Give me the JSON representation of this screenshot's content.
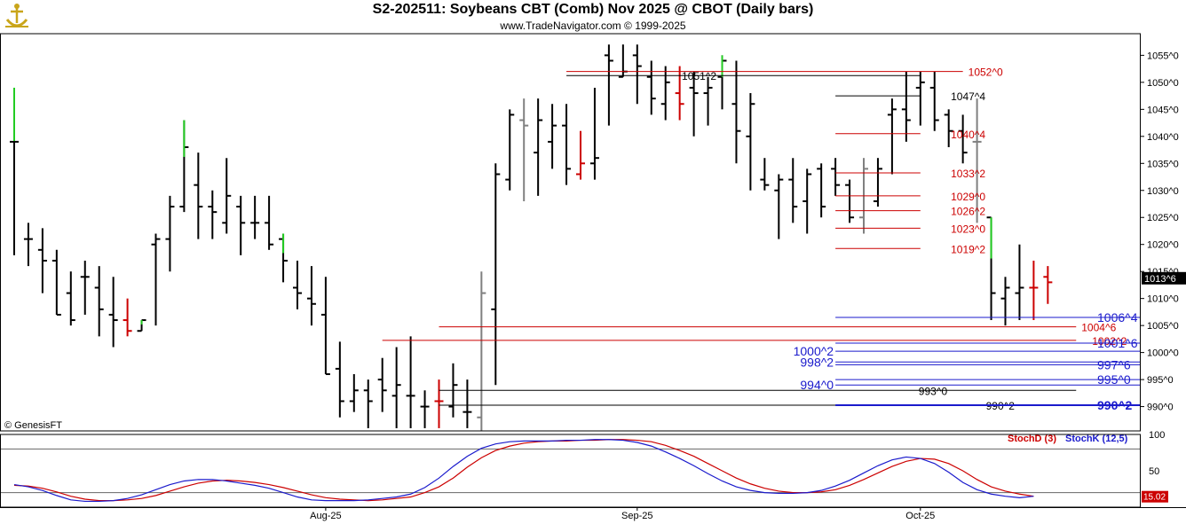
{
  "header": {
    "title": "S2-202511:  Soybeans CBT (Comb) Nov 2025 @ CBOT  (Daily bars)",
    "subtitle": "www.TradeNavigator.com © 1999-2025",
    "copyright": "© GenesisFT"
  },
  "colors": {
    "up": "#000000",
    "down": "#cc0000",
    "neutral": "#808080",
    "highlight": "#22cc22",
    "blue": "#1a1acc"
  },
  "chart_data": [
    {
      "type": "ohlc",
      "title": "",
      "xlabel": "",
      "ylabel": "",
      "ylim": [
        985.5,
        1059
      ],
      "y_ticks": [
        990,
        995,
        1000,
        1005,
        1010,
        1015,
        1020,
        1025,
        1030,
        1035,
        1040,
        1045,
        1050,
        1055
      ],
      "y_tick_labels": [
        "990^0",
        "995^0",
        "1000^0",
        "1005^0",
        "1010^0",
        "1015^0",
        "1020^0",
        "1025^0",
        "1030^0",
        "1035^0",
        "1040^0",
        "1045^0",
        "1050^0",
        "1055^0"
      ],
      "x_tick_labels": [
        {
          "label": "Aug-25",
          "bar": 22
        },
        {
          "label": "Sep-25",
          "bar": 44
        },
        {
          "label": "Oct-25",
          "bar": 64
        }
      ],
      "last_price_label": "1013^6",
      "last_price": 1013.75,
      "bars": [
        {
          "o": 1039,
          "h": 1049,
          "l": 1018,
          "c": 1039,
          "hl": "g"
        },
        {
          "o": 1021,
          "h": 1024,
          "l": 1016,
          "c": 1021
        },
        {
          "o": 1019,
          "h": 1023,
          "l": 1011,
          "c": 1017
        },
        {
          "o": 1017,
          "h": 1019,
          "l": 1007,
          "c": 1007
        },
        {
          "o": 1011,
          "h": 1015,
          "l": 1005,
          "c": 1006
        },
        {
          "o": 1014,
          "h": 1017,
          "l": 1007,
          "c": 1014
        },
        {
          "o": 1012,
          "h": 1016,
          "l": 1003,
          "c": 1008
        },
        {
          "o": 1007,
          "h": 1014,
          "l": 1001,
          "c": 1006
        },
        {
          "o": 1006,
          "h": 1010,
          "l": 1003,
          "c": 1004,
          "col": "r"
        },
        {
          "o": 1004,
          "h": 1006,
          "l": 1004,
          "c": 1006,
          "hl": "g"
        },
        {
          "o": 1020,
          "h": 1022,
          "l": 1005,
          "c": 1021
        },
        {
          "o": 1021,
          "h": 1029,
          "l": 1015,
          "c": 1027
        },
        {
          "o": 1027,
          "h": 1043,
          "l": 1026,
          "c": 1038,
          "hl": "g"
        },
        {
          "o": 1031,
          "h": 1037,
          "l": 1021,
          "c": 1027
        },
        {
          "o": 1027,
          "h": 1030,
          "l": 1021,
          "c": 1026
        },
        {
          "o": 1024,
          "h": 1036,
          "l": 1022,
          "c": 1029
        },
        {
          "o": 1027,
          "h": 1029,
          "l": 1018,
          "c": 1024
        },
        {
          "o": 1024,
          "h": 1029,
          "l": 1021,
          "c": 1024
        },
        {
          "o": 1024,
          "h": 1029,
          "l": 1019,
          "c": 1020
        },
        {
          "o": 1021,
          "h": 1022,
          "l": 1013,
          "c": 1017,
          "hl": "g"
        },
        {
          "o": 1012,
          "h": 1017,
          "l": 1008,
          "c": 1011
        },
        {
          "o": 1010,
          "h": 1016,
          "l": 1005,
          "c": 1009
        },
        {
          "o": 1007,
          "h": 1014,
          "l": 996,
          "c": 996
        },
        {
          "o": 997,
          "h": 1002,
          "l": 988,
          "c": 991
        },
        {
          "o": 991,
          "h": 996,
          "l": 989,
          "c": 993
        },
        {
          "o": 993,
          "h": 995,
          "l": 986,
          "c": 991
        },
        {
          "o": 995,
          "h": 999,
          "l": 989,
          "c": 993
        },
        {
          "o": 992,
          "h": 1001,
          "l": 986,
          "c": 994
        },
        {
          "o": 992,
          "h": 1003,
          "l": 986,
          "c": 992
        },
        {
          "o": 990,
          "h": 993,
          "l": 986,
          "c": 990
        },
        {
          "o": 991,
          "h": 995,
          "l": 986,
          "c": 991,
          "col": "r"
        },
        {
          "o": 990,
          "h": 998,
          "l": 988,
          "c": 994
        },
        {
          "o": 989,
          "h": 995,
          "l": 986,
          "c": 989
        },
        {
          "o": 988,
          "h": 1015,
          "l": 985.5,
          "c": 1011,
          "col": "n"
        },
        {
          "o": 1008,
          "h": 1035,
          "l": 994,
          "c": 1033
        },
        {
          "o": 1032,
          "h": 1045,
          "l": 1030,
          "c": 1044
        },
        {
          "o": 1043,
          "h": 1047,
          "l": 1028,
          "c": 1042,
          "col": "n"
        },
        {
          "o": 1037,
          "h": 1047,
          "l": 1029,
          "c": 1043
        },
        {
          "o": 1039,
          "h": 1046,
          "l": 1034,
          "c": 1042
        },
        {
          "o": 1042,
          "h": 1046,
          "l": 1031,
          "c": 1034
        },
        {
          "o": 1033,
          "h": 1041,
          "l": 1032,
          "c": 1035,
          "col": "r"
        },
        {
          "o": 1035,
          "h": 1049,
          "l": 1032,
          "c": 1036
        },
        {
          "o": 1055,
          "h": 1057,
          "l": 1042,
          "c": 1054
        },
        {
          "o": 1051,
          "h": 1057,
          "l": 1051,
          "c": 1052
        },
        {
          "o": 1055,
          "h": 1057,
          "l": 1046,
          "c": 1053
        },
        {
          "o": 1051,
          "h": 1054,
          "l": 1044,
          "c": 1047
        },
        {
          "o": 1046,
          "h": 1053,
          "l": 1043,
          "c": 1050
        },
        {
          "o": 1048,
          "h": 1053,
          "l": 1043,
          "c": 1046,
          "col": "r"
        },
        {
          "o": 1049,
          "h": 1052,
          "l": 1040,
          "c": 1048
        },
        {
          "o": 1048,
          "h": 1051,
          "l": 1042,
          "c": 1049
        },
        {
          "o": 1051,
          "h": 1055,
          "l": 1045,
          "c": 1054,
          "hl": "g"
        },
        {
          "o": 1046,
          "h": 1054,
          "l": 1035,
          "c": 1041
        },
        {
          "o": 1040,
          "h": 1048,
          "l": 1030,
          "c": 1046
        },
        {
          "o": 1032,
          "h": 1036,
          "l": 1030,
          "c": 1031
        },
        {
          "o": 1030,
          "h": 1033,
          "l": 1021,
          "c": 1032
        },
        {
          "o": 1032,
          "h": 1036,
          "l": 1024,
          "c": 1027
        },
        {
          "o": 1028,
          "h": 1034,
          "l": 1022,
          "c": 1033
        },
        {
          "o": 1034,
          "h": 1035,
          "l": 1025,
          "c": 1027
        },
        {
          "o": 1034,
          "h": 1036,
          "l": 1029,
          "c": 1031
        },
        {
          "o": 1031,
          "h": 1032,
          "l": 1024,
          "c": 1025
        },
        {
          "o": 1025,
          "h": 1036,
          "l": 1022,
          "c": 1034,
          "col": "n"
        },
        {
          "o": 1028,
          "h": 1036,
          "l": 1027,
          "c": 1034
        },
        {
          "o": 1044,
          "h": 1047,
          "l": 1033,
          "c": 1045
        },
        {
          "o": 1045,
          "h": 1052,
          "l": 1039,
          "c": 1043
        },
        {
          "o": 1049,
          "h": 1052,
          "l": 1042,
          "c": 1050
        },
        {
          "o": 1049,
          "h": 1052,
          "l": 1041,
          "c": 1043
        },
        {
          "o": 1044,
          "h": 1045,
          "l": 1038,
          "c": 1041
        },
        {
          "o": 1041,
          "h": 1044,
          "l": 1035,
          "c": 1037
        },
        {
          "o": 1039,
          "h": 1047,
          "l": 1024,
          "c": 1039,
          "col": "n"
        },
        {
          "o": 1025,
          "h": 1025,
          "l": 1006,
          "c": 1011,
          "hl": "g"
        },
        {
          "o": 1010,
          "h": 1014,
          "l": 1005,
          "c": 1012
        },
        {
          "o": 1011,
          "h": 1020,
          "l": 1006,
          "c": 1012
        },
        {
          "o": 1012,
          "h": 1017,
          "l": 1006,
          "c": 1012,
          "col": "r"
        },
        {
          "o": 1014,
          "h": 1016,
          "l": 1009,
          "c": 1013,
          "col": "r"
        }
      ],
      "levels": [
        {
          "label": "1052^0",
          "price": 1052,
          "color": "red",
          "from": 39,
          "to": 67,
          "label_x": "right"
        },
        {
          "label": "1051^2",
          "price": 1051.25,
          "color": "black",
          "from": 39,
          "to": 64,
          "label_x": "mid"
        },
        {
          "label": "1047^4",
          "price": 1047.5,
          "color": "black",
          "from": 58,
          "to": 64,
          "label_x": "mid"
        },
        {
          "label": "1040^4",
          "price": 1040.5,
          "color": "red",
          "from": 58,
          "to": 64,
          "label_x": "mid"
        },
        {
          "label": "1033^2",
          "price": 1033.25,
          "color": "red",
          "from": 58,
          "to": 64,
          "label_x": "mid"
        },
        {
          "label": "1029^0",
          "price": 1029,
          "color": "red",
          "from": 58,
          "to": 64,
          "label_x": "mid"
        },
        {
          "label": "1026^2",
          "price": 1026.25,
          "color": "red",
          "from": 58,
          "to": 64,
          "label_x": "mid"
        },
        {
          "label": "1023^0",
          "price": 1023,
          "color": "red",
          "from": 58,
          "to": 64,
          "label_x": "mid"
        },
        {
          "label": "1019^2",
          "price": 1019.25,
          "color": "red",
          "from": 58,
          "to": 64,
          "label_x": "mid"
        },
        {
          "label": "1006^4",
          "price": 1006.5,
          "color": "blue",
          "from": 58,
          "to": 89,
          "label_x": "right"
        },
        {
          "label": "1004^6",
          "price": 1004.75,
          "color": "red",
          "from": 30,
          "to": 75,
          "label_x": "right"
        },
        {
          "label": "1002^2",
          "price": 1002.25,
          "color": "red",
          "from": 26,
          "to": 75,
          "label_x": "right2"
        },
        {
          "label": "1001^6",
          "price": 1001.75,
          "color": "blue",
          "from": 58,
          "to": 89,
          "label_x": "right"
        },
        {
          "label": "1000^2",
          "price": 1000.25,
          "color": "blue",
          "from": 58,
          "to": 89,
          "label_x": "left"
        },
        {
          "label": "998^2",
          "price": 998.25,
          "color": "blue",
          "from": 58,
          "to": 85,
          "label_x": "left"
        },
        {
          "label": "997^6",
          "price": 997.75,
          "color": "blue",
          "from": 58,
          "to": 89,
          "label_x": "right"
        },
        {
          "label": "995^0",
          "price": 995,
          "color": "blue",
          "from": 58,
          "to": 89,
          "label_x": "right"
        },
        {
          "label": "994^0",
          "price": 994,
          "color": "blue",
          "from": 58,
          "to": 89,
          "label_x": "left"
        },
        {
          "label": "993^0",
          "price": 993,
          "color": "black",
          "from": 30,
          "to": 75,
          "label_x": "mid2"
        },
        {
          "label": "990^2",
          "price": 990.25,
          "color": "black",
          "from": 30,
          "to": 89,
          "label_x": "mid3"
        },
        {
          "label": "990^2",
          "price": 990.25,
          "color": "blue",
          "from": 58,
          "to": 89,
          "label_x": "right",
          "bold": true
        }
      ]
    },
    {
      "type": "line",
      "title": "",
      "ylim": [
        0,
        100
      ],
      "y_ticks": [
        0,
        50,
        100
      ],
      "y_tick_labels": [
        "",
        "50",
        "100"
      ],
      "ref_lines": [
        80,
        20
      ],
      "last_value_label": "15.02",
      "series": [
        {
          "name": "StochD (3)",
          "color": "#cc0000",
          "values": [
            30,
            29,
            26,
            21,
            15,
            11,
            9,
            9,
            10,
            12,
            16,
            22,
            28,
            33,
            36,
            37,
            36,
            34,
            31,
            27,
            22,
            17,
            13,
            11,
            10,
            9,
            10,
            12,
            14,
            20,
            28,
            40,
            55,
            68,
            78,
            84,
            88,
            90,
            91,
            91,
            92,
            92,
            93,
            93,
            92,
            90,
            85,
            78,
            70,
            60,
            50,
            40,
            32,
            26,
            22,
            20,
            20,
            21,
            24,
            30,
            38,
            47,
            56,
            63,
            67,
            66,
            60,
            50,
            38,
            28,
            22,
            18,
            15
          ]
        },
        {
          "name": "StochK (12,5)",
          "color": "#1a1acc",
          "values": [
            31,
            28,
            23,
            16,
            10,
            8,
            8,
            9,
            12,
            17,
            24,
            31,
            36,
            38,
            38,
            36,
            33,
            30,
            26,
            20,
            14,
            10,
            9,
            9,
            9,
            10,
            12,
            14,
            18,
            27,
            40,
            56,
            70,
            81,
            87,
            90,
            91,
            91,
            91,
            92,
            92,
            93,
            93,
            92,
            89,
            84,
            76,
            67,
            57,
            46,
            36,
            28,
            23,
            20,
            19,
            19,
            20,
            23,
            29,
            37,
            47,
            57,
            65,
            69,
            67,
            60,
            48,
            34,
            24,
            18,
            15,
            13,
            15
          ]
        }
      ]
    }
  ]
}
